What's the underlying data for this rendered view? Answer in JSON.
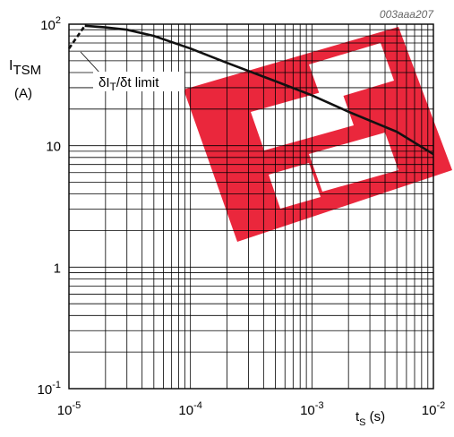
{
  "chart_data": {
    "type": "line",
    "figure_id": "003aaa207",
    "xlabel_main": "t",
    "xlabel_sub": "S",
    "xlabel_unit": " (s)",
    "ylabel_main": "I",
    "ylabel_sub": "TSM",
    "ylabel_unit": "(A)",
    "xscale": "log",
    "yscale": "log",
    "xlim": [
      1e-05,
      0.01
    ],
    "ylim": [
      0.1,
      100
    ],
    "grid": true,
    "x_ticks": [
      {
        "base": "10",
        "exp": "-5",
        "value": 1e-05
      },
      {
        "base": "10",
        "exp": "-4",
        "value": 0.0001
      },
      {
        "base": "10",
        "exp": "-3",
        "value": 0.001
      },
      {
        "base": "10",
        "exp": "-2",
        "value": 0.01
      }
    ],
    "y_ticks": [
      {
        "base": "10",
        "exp": "-1",
        "value": 0.1
      },
      {
        "base": "1",
        "exp": "",
        "value": 1
      },
      {
        "base": "10",
        "exp": "",
        "value": 10
      },
      {
        "base": "10",
        "exp": "2",
        "value": 100
      }
    ],
    "annotation": {
      "prefix": "δI",
      "sub": "T",
      "suffix": "/δt limit"
    },
    "series": [
      {
        "style": "solid",
        "x": [
          1.35e-05,
          2e-05,
          3e-05,
          5e-05,
          0.0001,
          0.0002,
          0.0005,
          0.001,
          0.002,
          0.005,
          0.01
        ],
        "y": [
          97,
          94,
          90,
          80,
          63,
          48,
          34,
          26,
          19,
          13,
          8.5
        ]
      },
      {
        "style": "dashed",
        "x": [
          1e-05,
          1.35e-05
        ],
        "y": [
          63,
          97
        ]
      }
    ]
  },
  "watermark_colors": {
    "red": "#e8152b"
  }
}
